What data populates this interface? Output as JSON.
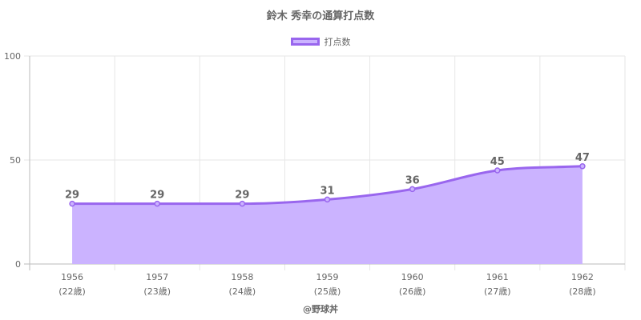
{
  "chart_data": {
    "type": "area",
    "title": "鈴木 秀幸の通算打点数",
    "categories": [
      "1956",
      "1957",
      "1958",
      "1959",
      "1960",
      "1961",
      "1962"
    ],
    "sublabels": [
      "(22歳)",
      "(23歳)",
      "(24歳)",
      "(25歳)",
      "(26歳)",
      "(27歳)",
      "(28歳)"
    ],
    "series": [
      {
        "name": "打点数",
        "values": [
          29,
          29,
          29,
          31,
          36,
          45,
          47
        ]
      }
    ],
    "ylim": [
      0,
      100
    ],
    "yticks": [
      0,
      50,
      100
    ],
    "grid": true,
    "legend": "top",
    "colors": {
      "line": "#9966ee",
      "fill": "#cbb3ff"
    }
  },
  "footer": {
    "credit": "@野球丼"
  }
}
